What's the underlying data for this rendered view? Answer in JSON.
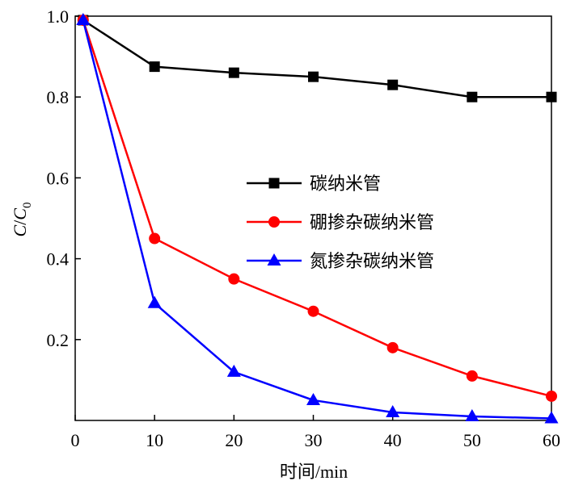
{
  "chart_data": {
    "type": "line",
    "x": [
      1,
      10,
      20,
      30,
      40,
      50,
      60
    ],
    "series": [
      {
        "name": "碳纳米管",
        "color": "#000000",
        "marker": "square",
        "values": [
          0.99,
          0.875,
          0.86,
          0.85,
          0.83,
          0.8,
          0.8
        ]
      },
      {
        "name": "硼掺杂碳纳米管",
        "color": "#ff0000",
        "marker": "circle",
        "values": [
          0.99,
          0.45,
          0.35,
          0.27,
          0.18,
          0.11,
          0.06
        ]
      },
      {
        "name": "氮掺杂碳纳米管",
        "color": "#0000ff",
        "marker": "triangle",
        "values": [
          0.99,
          0.29,
          0.12,
          0.05,
          0.02,
          0.01,
          0.005
        ]
      }
    ],
    "xlim": [
      0,
      60
    ],
    "ylim": [
      0,
      1.0
    ],
    "xticks": [
      0,
      10,
      20,
      30,
      40,
      50,
      60
    ],
    "yticks": [
      0.2,
      0.4,
      0.6,
      0.8,
      1.0
    ],
    "xlabel": "时间/min",
    "ylabel_main": "C",
    "ylabel_slash": "/",
    "ylabel_sub_base": "C",
    "ylabel_sub": "0",
    "grid": false,
    "legend_position": "center-right"
  }
}
